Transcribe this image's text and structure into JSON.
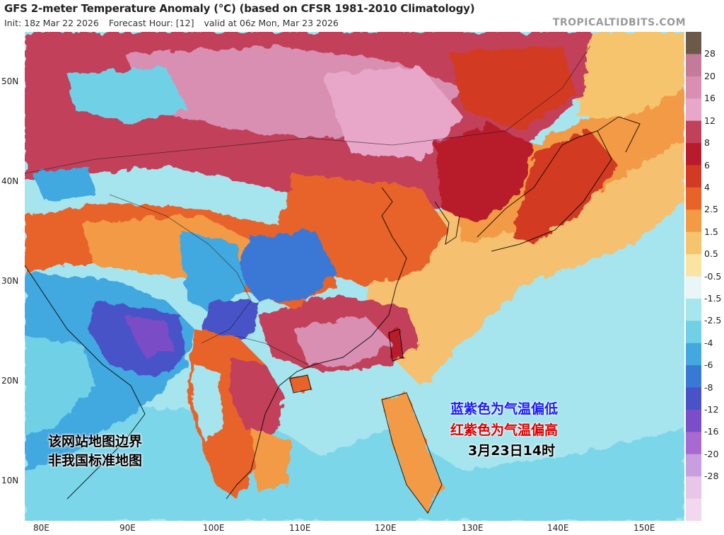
{
  "header": {
    "title": "GFS 2-meter Temperature Anomaly (°C) (based on CFSR 1981-2010 Climatology)",
    "init": "Init: 18z Mar 22 2026",
    "forecast_hour": "Forecast Hour: [12]",
    "valid": "valid at 06z Mon, Mar 23 2026",
    "brand": "TROPICALTIDBITS.COM"
  },
  "axes": {
    "lat_ticks": [
      "50N",
      "40N",
      "30N",
      "20N",
      "10N"
    ],
    "lon_ticks": [
      "80E",
      "90E",
      "100E",
      "110E",
      "120E",
      "130E",
      "140E",
      "150E"
    ]
  },
  "colorbar": {
    "labels": [
      "28",
      "20",
      "16",
      "12",
      "8",
      "6",
      "4",
      "2.5",
      "1.5",
      "0.5",
      "-0.5",
      "-1.5",
      "-2.5",
      "-4",
      "-6",
      "-8",
      "-12",
      "-16",
      "-20",
      "-28"
    ],
    "colors": [
      "#6b5a4a",
      "#c47b9a",
      "#d88fb2",
      "#e8a7c9",
      "#c2415a",
      "#b81c2c",
      "#d23a24",
      "#e8632a",
      "#f29a44",
      "#f6c46c",
      "#fbe3a4",
      "#e8f6f8",
      "#a8e6ee",
      "#6fd0e6",
      "#42a8e0",
      "#3a78d6",
      "#4a52c8",
      "#7a4ec6",
      "#a86ad0",
      "#c99ee0",
      "#e8c6e8",
      "#f2d8ee"
    ]
  },
  "annotations": {
    "disclaimer_line1": "该网站地图边界",
    "disclaimer_line2": "非我国标准地图",
    "legend_blue": "蓝紫色为气温偏低",
    "legend_red": "红紫色为气温偏高",
    "valid_local": "3月23日14时"
  }
}
